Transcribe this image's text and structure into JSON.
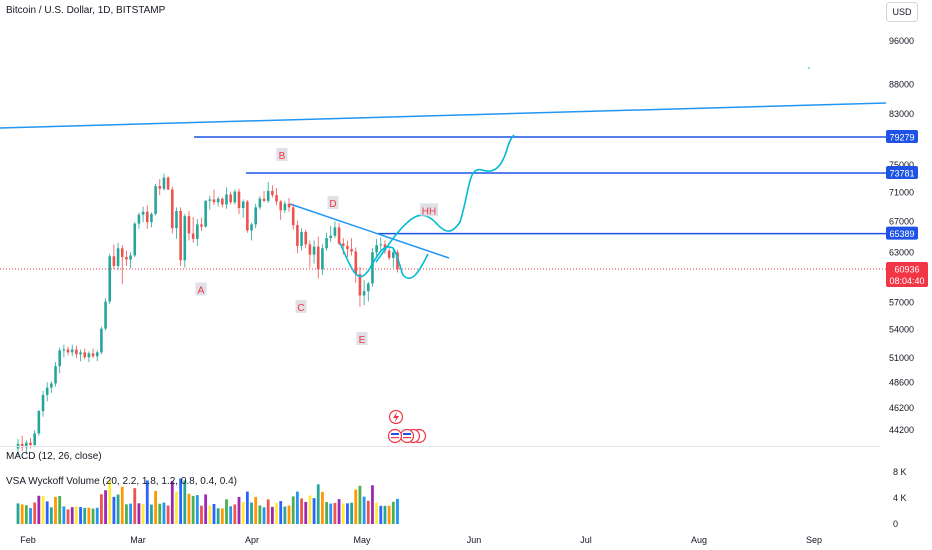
{
  "header": {
    "title": "Bitcoin / U.S. Dollar, 1D, BITSTAMP",
    "currency": "USD"
  },
  "indicators": {
    "macd_label": "MACD (12, 26, close)",
    "vsa_label": "VSA Wyckoff Volume (20, 2.2, 1.8, 1.2, 0.8, 0.4, 0.4)"
  },
  "colors": {
    "up": "#26a69a",
    "down": "#ef5350",
    "level_line": "#1e53e5",
    "trend_line": "#2196f3",
    "projection": "#00bcd4",
    "price_tag": "#f23645",
    "wave_label": "#f23645",
    "wave_label_bg": "#d1d4dc"
  },
  "chart_data": {
    "type": "candlestick",
    "title": "Bitcoin / U.S. Dollar, 1D, BITSTAMP",
    "y_axis": {
      "scale": "log",
      "ticks": [
        96000,
        88000,
        83000,
        79279,
        75000,
        73781,
        71000,
        67000,
        65389,
        63000,
        60936,
        57000,
        54000,
        51000,
        48600,
        46200,
        44200
      ],
      "ylim": [
        42000,
        100000
      ]
    },
    "x_axis": {
      "ticks": [
        "Feb",
        "Mar",
        "Apr",
        "May",
        "Jun",
        "Jul",
        "Aug",
        "Sep"
      ]
    },
    "price_lines": [
      {
        "value": 79279,
        "label": "79279"
      },
      {
        "value": 73781,
        "label": "73781"
      },
      {
        "value": 65389,
        "label": "65389"
      }
    ],
    "last_price": {
      "value": 60936,
      "label": "60936",
      "countdown": "08:04:40"
    },
    "wave_labels": [
      {
        "text": "A",
        "near_price": 58500
      },
      {
        "text": "B",
        "near_price": 76500
      },
      {
        "text": "C",
        "near_price": 56500
      },
      {
        "text": "D",
        "near_price": 69500
      },
      {
        "text": "E",
        "near_price": 53000
      },
      {
        "text": "HH",
        "near_price": 68500
      }
    ],
    "candles": [
      [
        42600,
        43400,
        42000,
        43000
      ],
      [
        43000,
        43700,
        42400,
        42700
      ],
      [
        42700,
        43300,
        42100,
        43100
      ],
      [
        43100,
        43500,
        42600,
        42900
      ],
      [
        42900,
        44200,
        42700,
        43900
      ],
      [
        43900,
        46000,
        43700,
        45900
      ],
      [
        45900,
        47800,
        45400,
        47400
      ],
      [
        47400,
        48600,
        46800,
        48100
      ],
      [
        48100,
        48700,
        47600,
        48500
      ],
      [
        48500,
        50600,
        48200,
        50200
      ],
      [
        50200,
        52100,
        49500,
        51800
      ],
      [
        51800,
        52400,
        51100,
        51900
      ],
      [
        51900,
        52200,
        51300,
        51600
      ],
      [
        51600,
        52400,
        51200,
        51900
      ],
      [
        51900,
        52300,
        51000,
        51400
      ],
      [
        51400,
        51900,
        50700,
        51600
      ],
      [
        51600,
        52000,
        50900,
        51100
      ],
      [
        51100,
        51700,
        50600,
        51500
      ],
      [
        51500,
        52000,
        51000,
        51200
      ],
      [
        51200,
        51800,
        50700,
        51600
      ],
      [
        51600,
        54300,
        51400,
        54100
      ],
      [
        54100,
        57500,
        53900,
        57100
      ],
      [
        57100,
        62800,
        56800,
        62500
      ],
      [
        62500,
        64000,
        60900,
        61300
      ],
      [
        61300,
        64200,
        60800,
        63500
      ],
      [
        63500,
        63900,
        59100,
        62400
      ],
      [
        62400,
        63200,
        61300,
        62100
      ],
      [
        62100,
        63000,
        61000,
        62600
      ],
      [
        62600,
        66900,
        62400,
        66700
      ],
      [
        66700,
        68200,
        66000,
        67900
      ],
      [
        67900,
        69000,
        66900,
        68300
      ],
      [
        68300,
        69200,
        66000,
        66900
      ],
      [
        66900,
        68200,
        66200,
        68000
      ],
      [
        68000,
        72200,
        67800,
        71900
      ],
      [
        71900,
        72900,
        70600,
        71500
      ],
      [
        71500,
        73700,
        71200,
        73100
      ],
      [
        73100,
        73300,
        71300,
        71400
      ],
      [
        71400,
        71800,
        65400,
        66100
      ],
      [
        66100,
        68900,
        64700,
        68400
      ],
      [
        68400,
        68900,
        61300,
        62000
      ],
      [
        62000,
        68000,
        61100,
        67700
      ],
      [
        67700,
        68400,
        64500,
        65400
      ],
      [
        65400,
        67600,
        64200,
        64700
      ],
      [
        64700,
        67300,
        63800,
        66600
      ],
      [
        66600,
        67500,
        65700,
        66300
      ],
      [
        66300,
        69900,
        66200,
        69800
      ],
      [
        69800,
        70500,
        68600,
        70000
      ],
      [
        70000,
        71400,
        69200,
        69600
      ],
      [
        69600,
        70400,
        69000,
        70100
      ],
      [
        70100,
        70300,
        68900,
        69300
      ],
      [
        69300,
        71700,
        68700,
        70700
      ],
      [
        70700,
        71100,
        69300,
        69600
      ],
      [
        69600,
        71400,
        69300,
        71100
      ],
      [
        71100,
        71500,
        68000,
        68800
      ],
      [
        68800,
        70000,
        67500,
        69700
      ],
      [
        69700,
        69900,
        65500,
        65800
      ],
      [
        65800,
        66800,
        64500,
        66600
      ],
      [
        66600,
        69400,
        66100,
        68900
      ],
      [
        68900,
        70500,
        68600,
        70100
      ],
      [
        70100,
        71200,
        69600,
        69800
      ],
      [
        69800,
        72500,
        69500,
        71200
      ],
      [
        71200,
        72000,
        70300,
        70600
      ],
      [
        70600,
        71600,
        69200,
        69700
      ],
      [
        69700,
        69900,
        67200,
        68500
      ],
      [
        68500,
        69800,
        68100,
        69400
      ],
      [
        69400,
        70200,
        68300,
        68900
      ],
      [
        68900,
        69400,
        65900,
        66500
      ],
      [
        66500,
        67100,
        62900,
        63800
      ],
      [
        63800,
        66100,
        63200,
        65600
      ],
      [
        65600,
        65900,
        63500,
        64000
      ],
      [
        64000,
        64500,
        61100,
        62700
      ],
      [
        62700,
        64500,
        61600,
        63700
      ],
      [
        63700,
        65000,
        59800,
        60900
      ],
      [
        60900,
        64000,
        60200,
        63500
      ],
      [
        63500,
        65500,
        63200,
        64800
      ],
      [
        64800,
        66400,
        64300,
        65100
      ],
      [
        65100,
        67000,
        64800,
        66200
      ],
      [
        66200,
        66800,
        63900,
        64100
      ],
      [
        64100,
        64800,
        62700,
        63800
      ],
      [
        63800,
        64500,
        62400,
        63400
      ],
      [
        63400,
        64800,
        62600,
        63100
      ],
      [
        63100,
        63600,
        59300,
        60300
      ],
      [
        60300,
        61200,
        56500,
        57800
      ],
      [
        57800,
        59600,
        56700,
        58300
      ],
      [
        58300,
        59400,
        57100,
        59200
      ],
      [
        59200,
        63500,
        58800,
        63000
      ],
      [
        63000,
        64700,
        62500,
        63900
      ],
      [
        63900,
        64900,
        63200,
        64000
      ],
      [
        64000,
        64500,
        62800,
        63200
      ],
      [
        63200,
        63700,
        62000,
        62300
      ],
      [
        62300,
        63400,
        61100,
        63000
      ],
      [
        63000,
        63300,
        60500,
        60936
      ]
    ],
    "volume_axis": {
      "ticks": [
        "8 K",
        "4 K",
        "0"
      ]
    }
  }
}
